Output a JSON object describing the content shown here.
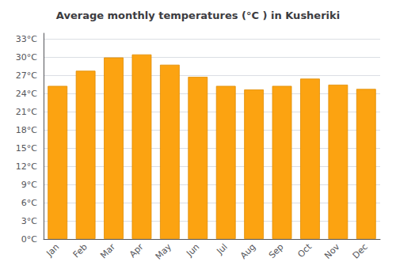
{
  "chart_data": {
    "type": "bar",
    "title": "Average monthly temperatures (°C ) in Kusheriki",
    "categories": [
      "Jan",
      "Feb",
      "Mar",
      "Apr",
      "May",
      "Jun",
      "Jul",
      "Aug",
      "Sep",
      "Oct",
      "Nov",
      "Dec"
    ],
    "values": [
      25.3,
      27.8,
      30.0,
      30.5,
      28.8,
      26.8,
      25.3,
      24.7,
      25.3,
      26.5,
      25.5,
      24.8
    ],
    "color": "#FCA311",
    "ylim": [
      0,
      34
    ],
    "yticks": [
      {
        "value": 0,
        "label": "0°C"
      },
      {
        "value": 3,
        "label": "3°C"
      },
      {
        "value": 6,
        "label": "6°C"
      },
      {
        "value": 9,
        "label": "9°C"
      },
      {
        "value": 12,
        "label": "12°C"
      },
      {
        "value": 15,
        "label": "15°C"
      },
      {
        "value": 18,
        "label": "18°C"
      },
      {
        "value": 21,
        "label": "21°C"
      },
      {
        "value": 24,
        "label": "24°C"
      },
      {
        "value": 27,
        "label": "27°C"
      },
      {
        "value": 30,
        "label": "30°C"
      },
      {
        "value": 33,
        "label": "33°C"
      }
    ],
    "grid": true
  }
}
